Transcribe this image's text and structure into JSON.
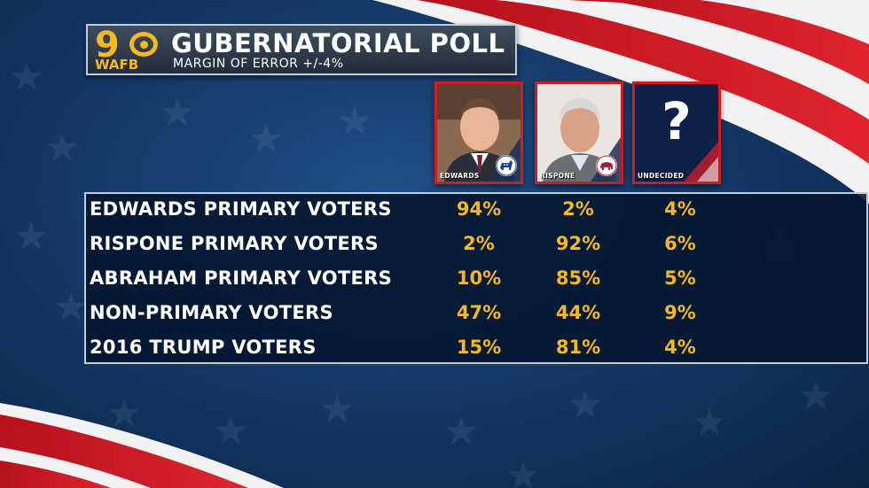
{
  "header": {
    "logo_number": "9",
    "logo_callsign": "WAFB",
    "title": "GUBERNATORIAL POLL",
    "subtitle": "MARGIN OF ERROR +/-4%"
  },
  "candidates": [
    {
      "name": "EDWARDS",
      "party": "democrat-donkey-icon"
    },
    {
      "name": "RISPONE",
      "party": "republican-elephant-icon"
    },
    {
      "name": "UNDECIDED",
      "symbol": "?"
    }
  ],
  "rows": [
    {
      "label": "EDWARDS PRIMARY VOTERS",
      "values": [
        "94%",
        "2%",
        "4%"
      ]
    },
    {
      "label": "RISPONE PRIMARY VOTERS",
      "values": [
        "2%",
        "92%",
        "6%"
      ]
    },
    {
      "label": "ABRAHAM PRIMARY VOTERS",
      "values": [
        "10%",
        "85%",
        "5%"
      ]
    },
    {
      "label": "NON-PRIMARY VOTERS",
      "values": [
        "47%",
        "44%",
        "9%"
      ]
    },
    {
      "label": "2016 TRUMP VOTERS",
      "values": [
        "15%",
        "81%",
        "4%"
      ]
    }
  ],
  "colors": {
    "accent_gold": "#f5b823",
    "flag_red": "#d11a24",
    "navy": "#143a68",
    "white": "#ffffff"
  }
}
